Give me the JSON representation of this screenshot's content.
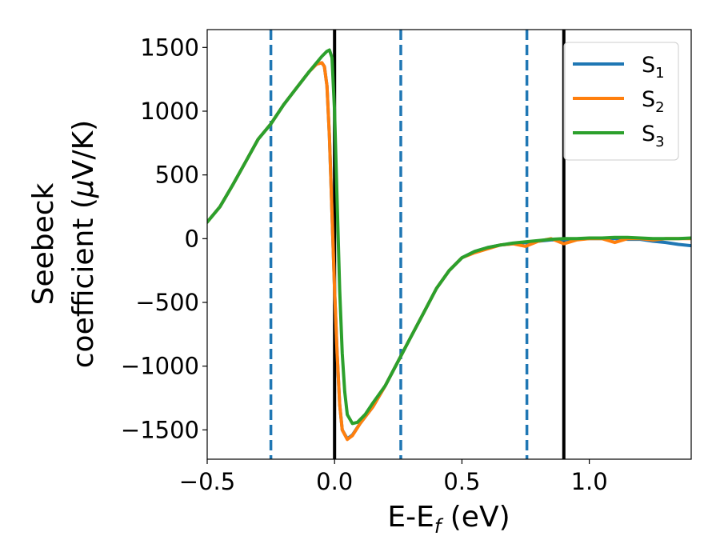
{
  "chart_data": {
    "type": "line",
    "title": "",
    "xlabel": "E-E",
    "xlabel_sub": "f",
    "xlabel_unit": " (eV)",
    "ylabel_line1": "Seebeck",
    "ylabel_line2_prefix": "coefficient  (",
    "ylabel_mu": "μ",
    "ylabel_line2_suffix": "V/K)",
    "xlim": [
      -0.5,
      1.4
    ],
    "ylim": [
      -1730,
      1640
    ],
    "xticks": [
      -0.5,
      0.0,
      0.5,
      1.0
    ],
    "xtick_labels": [
      "−0.5",
      "0.0",
      "0.5",
      "1.0"
    ],
    "yticks": [
      1500,
      1000,
      500,
      0,
      -500,
      -1000,
      -1500
    ],
    "ytick_labels": [
      "1500",
      "1000",
      "500",
      "0",
      "−500",
      "−1000",
      "−1500"
    ],
    "grid": false,
    "legend_position": "top-right",
    "vlines_solid": [
      0.0,
      0.9
    ],
    "vlines_dashed": [
      -0.25,
      0.26,
      0.755
    ],
    "colors": {
      "S1": "#1f77b4",
      "S2": "#ff7f0e",
      "S3": "#2ca02c",
      "solid_vline": "#000000",
      "dashed_vline": "#1f77b4"
    },
    "series": [
      {
        "name": "S",
        "sub": "1",
        "key": "S1",
        "x": [
          -0.5,
          -0.45,
          -0.4,
          -0.35,
          -0.3,
          -0.25,
          -0.2,
          -0.15,
          -0.1,
          -0.07,
          -0.05,
          -0.04,
          -0.03,
          -0.02,
          -0.01,
          0.0,
          0.01,
          0.02,
          0.03,
          0.05,
          0.07,
          0.1,
          0.15,
          0.2,
          0.25,
          0.3,
          0.35,
          0.4,
          0.45,
          0.5,
          0.55,
          0.6,
          0.65,
          0.7,
          0.75,
          0.8,
          0.85,
          0.9,
          0.95,
          1.0,
          1.05,
          1.1,
          1.15,
          1.2,
          1.25,
          1.3,
          1.35,
          1.4
        ],
        "values": [
          130,
          250,
          420,
          600,
          780,
          900,
          1050,
          1180,
          1310,
          1370,
          1380,
          1350,
          1200,
          800,
          200,
          -400,
          -900,
          -1300,
          -1500,
          -1570,
          -1540,
          -1450,
          -1320,
          -1150,
          -960,
          -770,
          -580,
          -390,
          -250,
          -150,
          -100,
          -70,
          -50,
          -40,
          -30,
          -20,
          -10,
          -10,
          -5,
          0,
          0,
          0,
          -5,
          -5,
          -20,
          -30,
          -45,
          -55
        ]
      },
      {
        "name": "S",
        "sub": "2",
        "key": "S2",
        "x": [
          -0.5,
          -0.45,
          -0.4,
          -0.35,
          -0.3,
          -0.25,
          -0.2,
          -0.15,
          -0.1,
          -0.07,
          -0.05,
          -0.04,
          -0.03,
          -0.02,
          -0.01,
          0.0,
          0.01,
          0.02,
          0.03,
          0.05,
          0.07,
          0.1,
          0.15,
          0.2,
          0.25,
          0.3,
          0.35,
          0.4,
          0.45,
          0.5,
          0.55,
          0.6,
          0.65,
          0.7,
          0.75,
          0.8,
          0.85,
          0.9,
          0.95,
          1.0,
          1.05,
          1.1,
          1.15,
          1.2,
          1.25,
          1.3,
          1.35,
          1.4
        ],
        "values": [
          130,
          250,
          420,
          600,
          780,
          900,
          1050,
          1180,
          1310,
          1370,
          1380,
          1350,
          1200,
          800,
          200,
          -400,
          -900,
          -1300,
          -1500,
          -1575,
          -1545,
          -1450,
          -1320,
          -1150,
          -960,
          -770,
          -580,
          -390,
          -250,
          -150,
          -110,
          -80,
          -50,
          -40,
          -60,
          -20,
          0,
          -40,
          -10,
          0,
          0,
          -30,
          0,
          0,
          -10,
          0,
          0,
          0
        ]
      },
      {
        "name": "S",
        "sub": "3",
        "key": "S3",
        "x": [
          -0.5,
          -0.45,
          -0.4,
          -0.35,
          -0.3,
          -0.25,
          -0.2,
          -0.15,
          -0.1,
          -0.05,
          -0.03,
          -0.02,
          -0.01,
          0.0,
          0.01,
          0.02,
          0.03,
          0.04,
          0.05,
          0.07,
          0.09,
          0.12,
          0.15,
          0.2,
          0.25,
          0.3,
          0.35,
          0.4,
          0.45,
          0.5,
          0.55,
          0.6,
          0.65,
          0.7,
          0.75,
          0.8,
          0.85,
          0.9,
          0.95,
          1.0,
          1.05,
          1.1,
          1.15,
          1.2,
          1.25,
          1.3,
          1.35,
          1.4
        ],
        "values": [
          130,
          250,
          420,
          600,
          780,
          900,
          1050,
          1180,
          1310,
          1430,
          1470,
          1480,
          1420,
          1000,
          300,
          -400,
          -900,
          -1200,
          -1380,
          -1450,
          -1440,
          -1380,
          -1290,
          -1150,
          -960,
          -770,
          -580,
          -390,
          -250,
          -150,
          -100,
          -70,
          -50,
          -35,
          -25,
          -15,
          -5,
          0,
          0,
          5,
          5,
          10,
          10,
          5,
          0,
          0,
          0,
          5
        ]
      }
    ]
  }
}
